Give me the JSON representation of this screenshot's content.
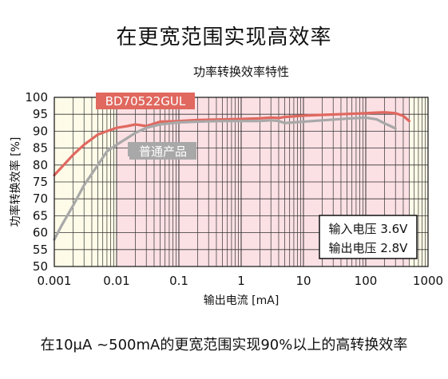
{
  "headline": "在更宽范围实现高效率",
  "footer": "在10μA ~500mA的更宽范围实现90%以上的高转换效率",
  "chart_data": {
    "type": "line",
    "title": "功率转换效率特性",
    "xlabel": "输出电流 [mA]",
    "ylabel": "功率转换效率 [%]",
    "xscale": "log",
    "xlim": [
      0.001,
      1000
    ],
    "ylim": [
      50,
      100
    ],
    "xticks": [
      "0.001",
      "0.01",
      "0.1",
      "1",
      "10",
      "100",
      "1000"
    ],
    "yticks": [
      "50",
      "55",
      "60",
      "65",
      "70",
      "75",
      "80",
      "85",
      "90",
      "95",
      "100"
    ],
    "grid": true,
    "highlight_range": [
      0.01,
      500
    ],
    "series": [
      {
        "name": "BD70522GUL",
        "color": "#e0685f",
        "x": [
          0.001,
          0.0015,
          0.002,
          0.003,
          0.005,
          0.007,
          0.01,
          0.015,
          0.02,
          0.03,
          0.05,
          0.1,
          0.2,
          0.5,
          1,
          2,
          3,
          4,
          5,
          10,
          20,
          50,
          100,
          150,
          200,
          300,
          400,
          500
        ],
        "y": [
          77,
          80.5,
          83,
          86,
          89,
          90,
          91,
          91.5,
          92,
          91.5,
          92.8,
          93,
          93.3,
          93.5,
          93.6,
          93.8,
          94,
          93.9,
          94.2,
          94.6,
          94.8,
          95.1,
          95.3,
          95.5,
          95.6,
          95.3,
          94.5,
          93
        ]
      },
      {
        "name": "普通产品",
        "color": "#a8a8a8",
        "x": [
          0.001,
          0.0013,
          0.002,
          0.003,
          0.005,
          0.007,
          0.01,
          0.015,
          0.02,
          0.03,
          0.05,
          0.1,
          0.2,
          0.5,
          1,
          2,
          3,
          4,
          5,
          10,
          20,
          50,
          100,
          150,
          200,
          250,
          300
        ],
        "y": [
          58,
          62,
          68,
          74,
          80,
          84,
          86,
          88,
          89.5,
          91,
          92,
          92.6,
          92.8,
          93,
          93,
          93,
          93.2,
          93,
          92.4,
          92.8,
          93.2,
          93.7,
          94,
          93.5,
          92.3,
          91.5,
          90.8
        ]
      }
    ],
    "conditions": [
      "输入电压 3.6V",
      "输出电压 2.8V"
    ]
  }
}
